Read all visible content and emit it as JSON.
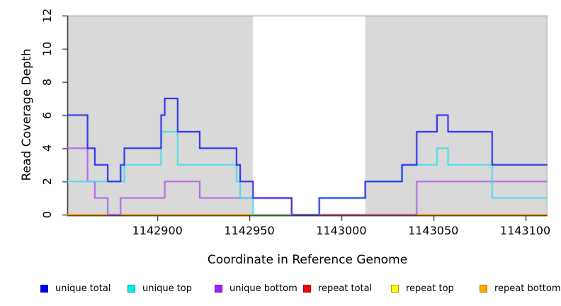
{
  "chart_data": {
    "type": "line",
    "subtype": "step-coverage",
    "xlabel": "Coordinate in Reference Genome",
    "ylabel": "Read Coverage Depth",
    "xlim": [
      1142851,
      1143112
    ],
    "ylim": [
      0,
      12
    ],
    "x_ticks": [
      1142900,
      1142950,
      1143000,
      1143050,
      1143100
    ],
    "y_ticks": [
      0,
      2,
      4,
      6,
      8,
      10,
      12
    ],
    "grid": false,
    "legend_position": "bottom",
    "frame": {
      "background": "#ffffff",
      "top_border": "#8f8f8f",
      "right_border": "#b5b5b5",
      "axis_color": "#1a1a1a"
    },
    "background_regions": [
      {
        "name": "unique-region-left",
        "x0": 1142851,
        "x1": 1142952,
        "color": "#d9d9d9"
      },
      {
        "name": "gap-region",
        "x0": 1142952,
        "x1": 1143013,
        "color": "#ffffff"
      },
      {
        "name": "unique-region-right",
        "x0": 1143013,
        "x1": 1143112,
        "color": "#d9d9d9"
      }
    ],
    "series": [
      {
        "name": "repeat total",
        "color": "#ff0000",
        "edges": [
          1142851,
          1143112
        ],
        "values": [
          0
        ]
      },
      {
        "name": "repeat top",
        "color": "#ffff00",
        "edges": [
          1142851,
          1143112
        ],
        "values": [
          0
        ]
      },
      {
        "name": "repeat bottom",
        "color": "#ffa500",
        "edges": [
          1142851,
          1143112
        ],
        "values": [
          0
        ]
      },
      {
        "name": "unique bottom",
        "color": "#ae63e2",
        "edges": [
          1142851,
          1142862,
          1142866,
          1142873,
          1142880,
          1142904,
          1142923,
          1142973,
          1143041,
          1143112
        ],
        "values": [
          4,
          2,
          1,
          0,
          1,
          2,
          1,
          0,
          2
        ]
      },
      {
        "name": "unique top",
        "color": "#45dde8",
        "edges": [
          1142851,
          1142882,
          1142902,
          1142911,
          1142943,
          1142945,
          1142952,
          1142988,
          1143013,
          1143033,
          1143052,
          1143058,
          1143082,
          1143112
        ],
        "values": [
          2,
          3,
          5,
          3,
          2,
          1,
          0,
          1,
          2,
          3,
          4,
          3,
          1
        ]
      },
      {
        "name": "unique total",
        "color": "#2424ef",
        "edges": [
          1142851,
          1142862,
          1142866,
          1142873,
          1142880,
          1142882,
          1142902,
          1142904,
          1142911,
          1142923,
          1142943,
          1142945,
          1142952,
          1142973,
          1142988,
          1143013,
          1143033,
          1143041,
          1143052,
          1143058,
          1143082,
          1143112
        ],
        "values": [
          6,
          4,
          3,
          2,
          3,
          4,
          6,
          7,
          5,
          4,
          3,
          2,
          1,
          0,
          1,
          2,
          3,
          5,
          6,
          5,
          3
        ]
      }
    ],
    "zero_line_overrides": [
      {
        "x0": 1142952,
        "x1": 1142973,
        "color": "#7cc88c"
      },
      {
        "x0": 1142973,
        "x1": 1142988,
        "color": "#5b55e6"
      },
      {
        "x0": 1142988,
        "x1": 1143041,
        "color": "#d85c7c"
      }
    ],
    "legend": [
      {
        "label": "unique total",
        "fill": "#0000ee",
        "edge": "#0000a0"
      },
      {
        "label": "unique top",
        "fill": "#00eeee",
        "edge": "#009aa8"
      },
      {
        "label": "unique bottom",
        "fill": "#a020f0",
        "edge": "#7a00c0"
      },
      {
        "label": "repeat total",
        "fill": "#ff0000",
        "edge": "#a00000"
      },
      {
        "label": "repeat top",
        "fill": "#ffff00",
        "edge": "#b0a000"
      },
      {
        "label": "repeat bottom",
        "fill": "#ffa500",
        "edge": "#c07800"
      }
    ]
  }
}
